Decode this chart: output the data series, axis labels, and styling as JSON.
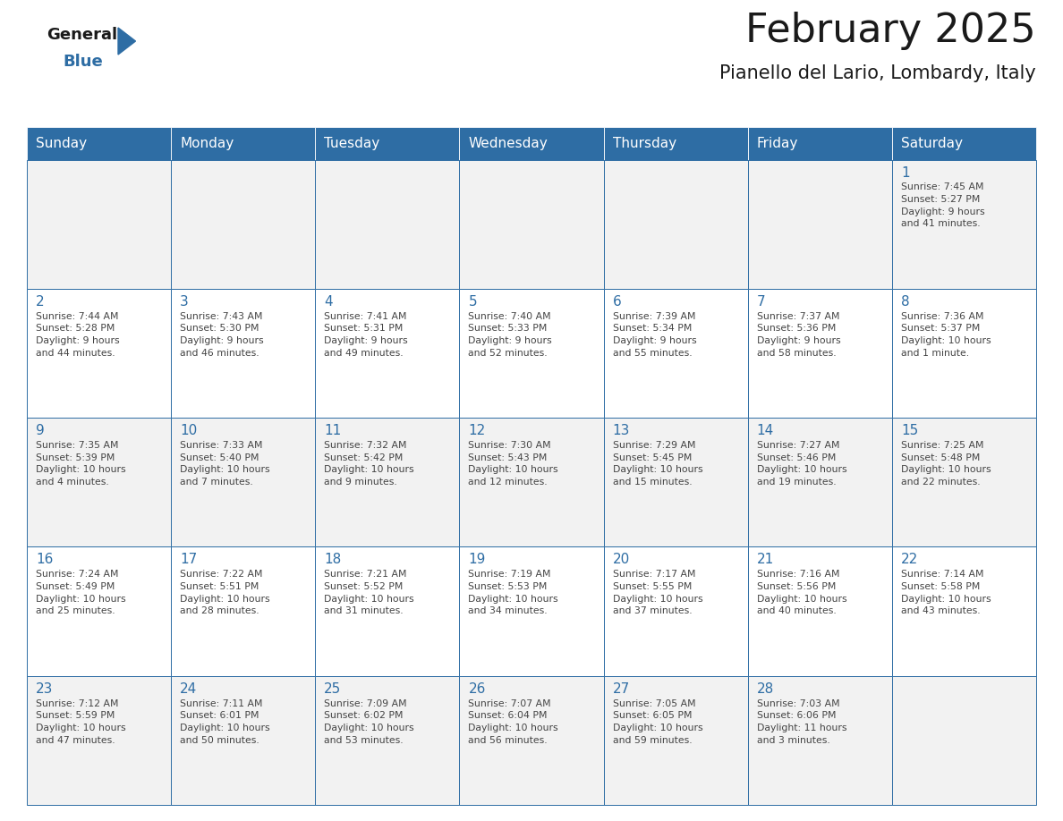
{
  "title": "February 2025",
  "subtitle": "Pianello del Lario, Lombardy, Italy",
  "header_bg": "#2E6DA4",
  "header_text_color": "#FFFFFF",
  "cell_bg_light": "#F2F2F2",
  "cell_bg_white": "#FFFFFF",
  "grid_line_color": "#2E6DA4",
  "day_number_color": "#2E6DA4",
  "cell_text_color": "#444444",
  "days_of_week": [
    "Sunday",
    "Monday",
    "Tuesday",
    "Wednesday",
    "Thursday",
    "Friday",
    "Saturday"
  ],
  "weeks": [
    [
      {
        "day": null,
        "info": ""
      },
      {
        "day": null,
        "info": ""
      },
      {
        "day": null,
        "info": ""
      },
      {
        "day": null,
        "info": ""
      },
      {
        "day": null,
        "info": ""
      },
      {
        "day": null,
        "info": ""
      },
      {
        "day": 1,
        "info": "Sunrise: 7:45 AM\nSunset: 5:27 PM\nDaylight: 9 hours\nand 41 minutes."
      }
    ],
    [
      {
        "day": 2,
        "info": "Sunrise: 7:44 AM\nSunset: 5:28 PM\nDaylight: 9 hours\nand 44 minutes."
      },
      {
        "day": 3,
        "info": "Sunrise: 7:43 AM\nSunset: 5:30 PM\nDaylight: 9 hours\nand 46 minutes."
      },
      {
        "day": 4,
        "info": "Sunrise: 7:41 AM\nSunset: 5:31 PM\nDaylight: 9 hours\nand 49 minutes."
      },
      {
        "day": 5,
        "info": "Sunrise: 7:40 AM\nSunset: 5:33 PM\nDaylight: 9 hours\nand 52 minutes."
      },
      {
        "day": 6,
        "info": "Sunrise: 7:39 AM\nSunset: 5:34 PM\nDaylight: 9 hours\nand 55 minutes."
      },
      {
        "day": 7,
        "info": "Sunrise: 7:37 AM\nSunset: 5:36 PM\nDaylight: 9 hours\nand 58 minutes."
      },
      {
        "day": 8,
        "info": "Sunrise: 7:36 AM\nSunset: 5:37 PM\nDaylight: 10 hours\nand 1 minute."
      }
    ],
    [
      {
        "day": 9,
        "info": "Sunrise: 7:35 AM\nSunset: 5:39 PM\nDaylight: 10 hours\nand 4 minutes."
      },
      {
        "day": 10,
        "info": "Sunrise: 7:33 AM\nSunset: 5:40 PM\nDaylight: 10 hours\nand 7 minutes."
      },
      {
        "day": 11,
        "info": "Sunrise: 7:32 AM\nSunset: 5:42 PM\nDaylight: 10 hours\nand 9 minutes."
      },
      {
        "day": 12,
        "info": "Sunrise: 7:30 AM\nSunset: 5:43 PM\nDaylight: 10 hours\nand 12 minutes."
      },
      {
        "day": 13,
        "info": "Sunrise: 7:29 AM\nSunset: 5:45 PM\nDaylight: 10 hours\nand 15 minutes."
      },
      {
        "day": 14,
        "info": "Sunrise: 7:27 AM\nSunset: 5:46 PM\nDaylight: 10 hours\nand 19 minutes."
      },
      {
        "day": 15,
        "info": "Sunrise: 7:25 AM\nSunset: 5:48 PM\nDaylight: 10 hours\nand 22 minutes."
      }
    ],
    [
      {
        "day": 16,
        "info": "Sunrise: 7:24 AM\nSunset: 5:49 PM\nDaylight: 10 hours\nand 25 minutes."
      },
      {
        "day": 17,
        "info": "Sunrise: 7:22 AM\nSunset: 5:51 PM\nDaylight: 10 hours\nand 28 minutes."
      },
      {
        "day": 18,
        "info": "Sunrise: 7:21 AM\nSunset: 5:52 PM\nDaylight: 10 hours\nand 31 minutes."
      },
      {
        "day": 19,
        "info": "Sunrise: 7:19 AM\nSunset: 5:53 PM\nDaylight: 10 hours\nand 34 minutes."
      },
      {
        "day": 20,
        "info": "Sunrise: 7:17 AM\nSunset: 5:55 PM\nDaylight: 10 hours\nand 37 minutes."
      },
      {
        "day": 21,
        "info": "Sunrise: 7:16 AM\nSunset: 5:56 PM\nDaylight: 10 hours\nand 40 minutes."
      },
      {
        "day": 22,
        "info": "Sunrise: 7:14 AM\nSunset: 5:58 PM\nDaylight: 10 hours\nand 43 minutes."
      }
    ],
    [
      {
        "day": 23,
        "info": "Sunrise: 7:12 AM\nSunset: 5:59 PM\nDaylight: 10 hours\nand 47 minutes."
      },
      {
        "day": 24,
        "info": "Sunrise: 7:11 AM\nSunset: 6:01 PM\nDaylight: 10 hours\nand 50 minutes."
      },
      {
        "day": 25,
        "info": "Sunrise: 7:09 AM\nSunset: 6:02 PM\nDaylight: 10 hours\nand 53 minutes."
      },
      {
        "day": 26,
        "info": "Sunrise: 7:07 AM\nSunset: 6:04 PM\nDaylight: 10 hours\nand 56 minutes."
      },
      {
        "day": 27,
        "info": "Sunrise: 7:05 AM\nSunset: 6:05 PM\nDaylight: 10 hours\nand 59 minutes."
      },
      {
        "day": 28,
        "info": "Sunrise: 7:03 AM\nSunset: 6:06 PM\nDaylight: 11 hours\nand 3 minutes."
      },
      {
        "day": null,
        "info": ""
      }
    ]
  ]
}
